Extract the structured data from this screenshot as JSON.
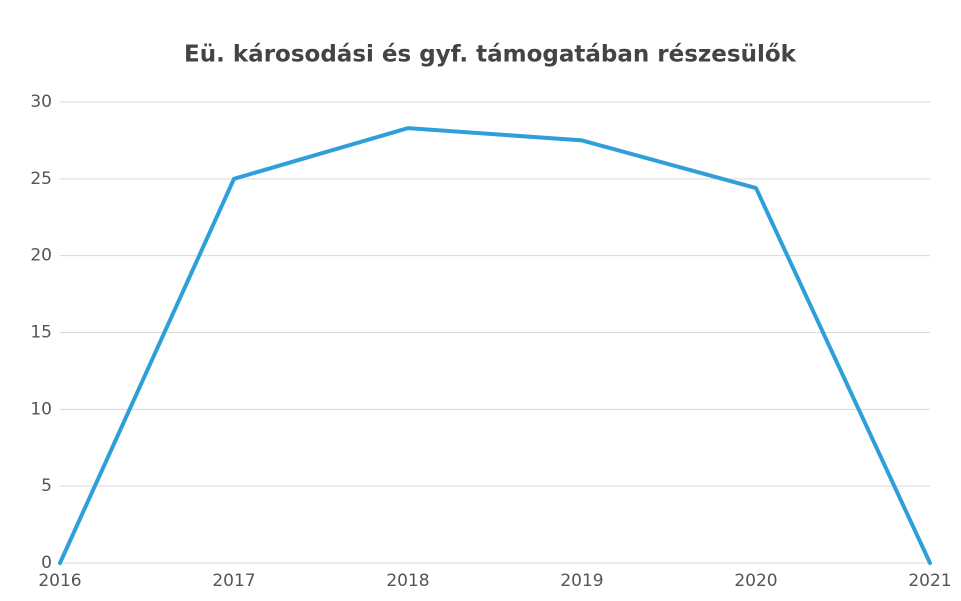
{
  "chart_data": {
    "type": "line",
    "title": "Eü. károsodási és gyf. támogatában részesülők",
    "categories": [
      "2016",
      "2017",
      "2018",
      "2019",
      "2020",
      "2021"
    ],
    "series": [
      {
        "name": "Eü. károsodási és gyf. támogatában részesülők",
        "color": "#2e9fd8",
        "values": [
          0,
          25,
          28.3,
          27.5,
          24.4,
          0
        ]
      }
    ],
    "ylim": [
      0,
      30
    ],
    "yticks": [
      0,
      5,
      10,
      15,
      20,
      25,
      30
    ],
    "grid": true
  }
}
